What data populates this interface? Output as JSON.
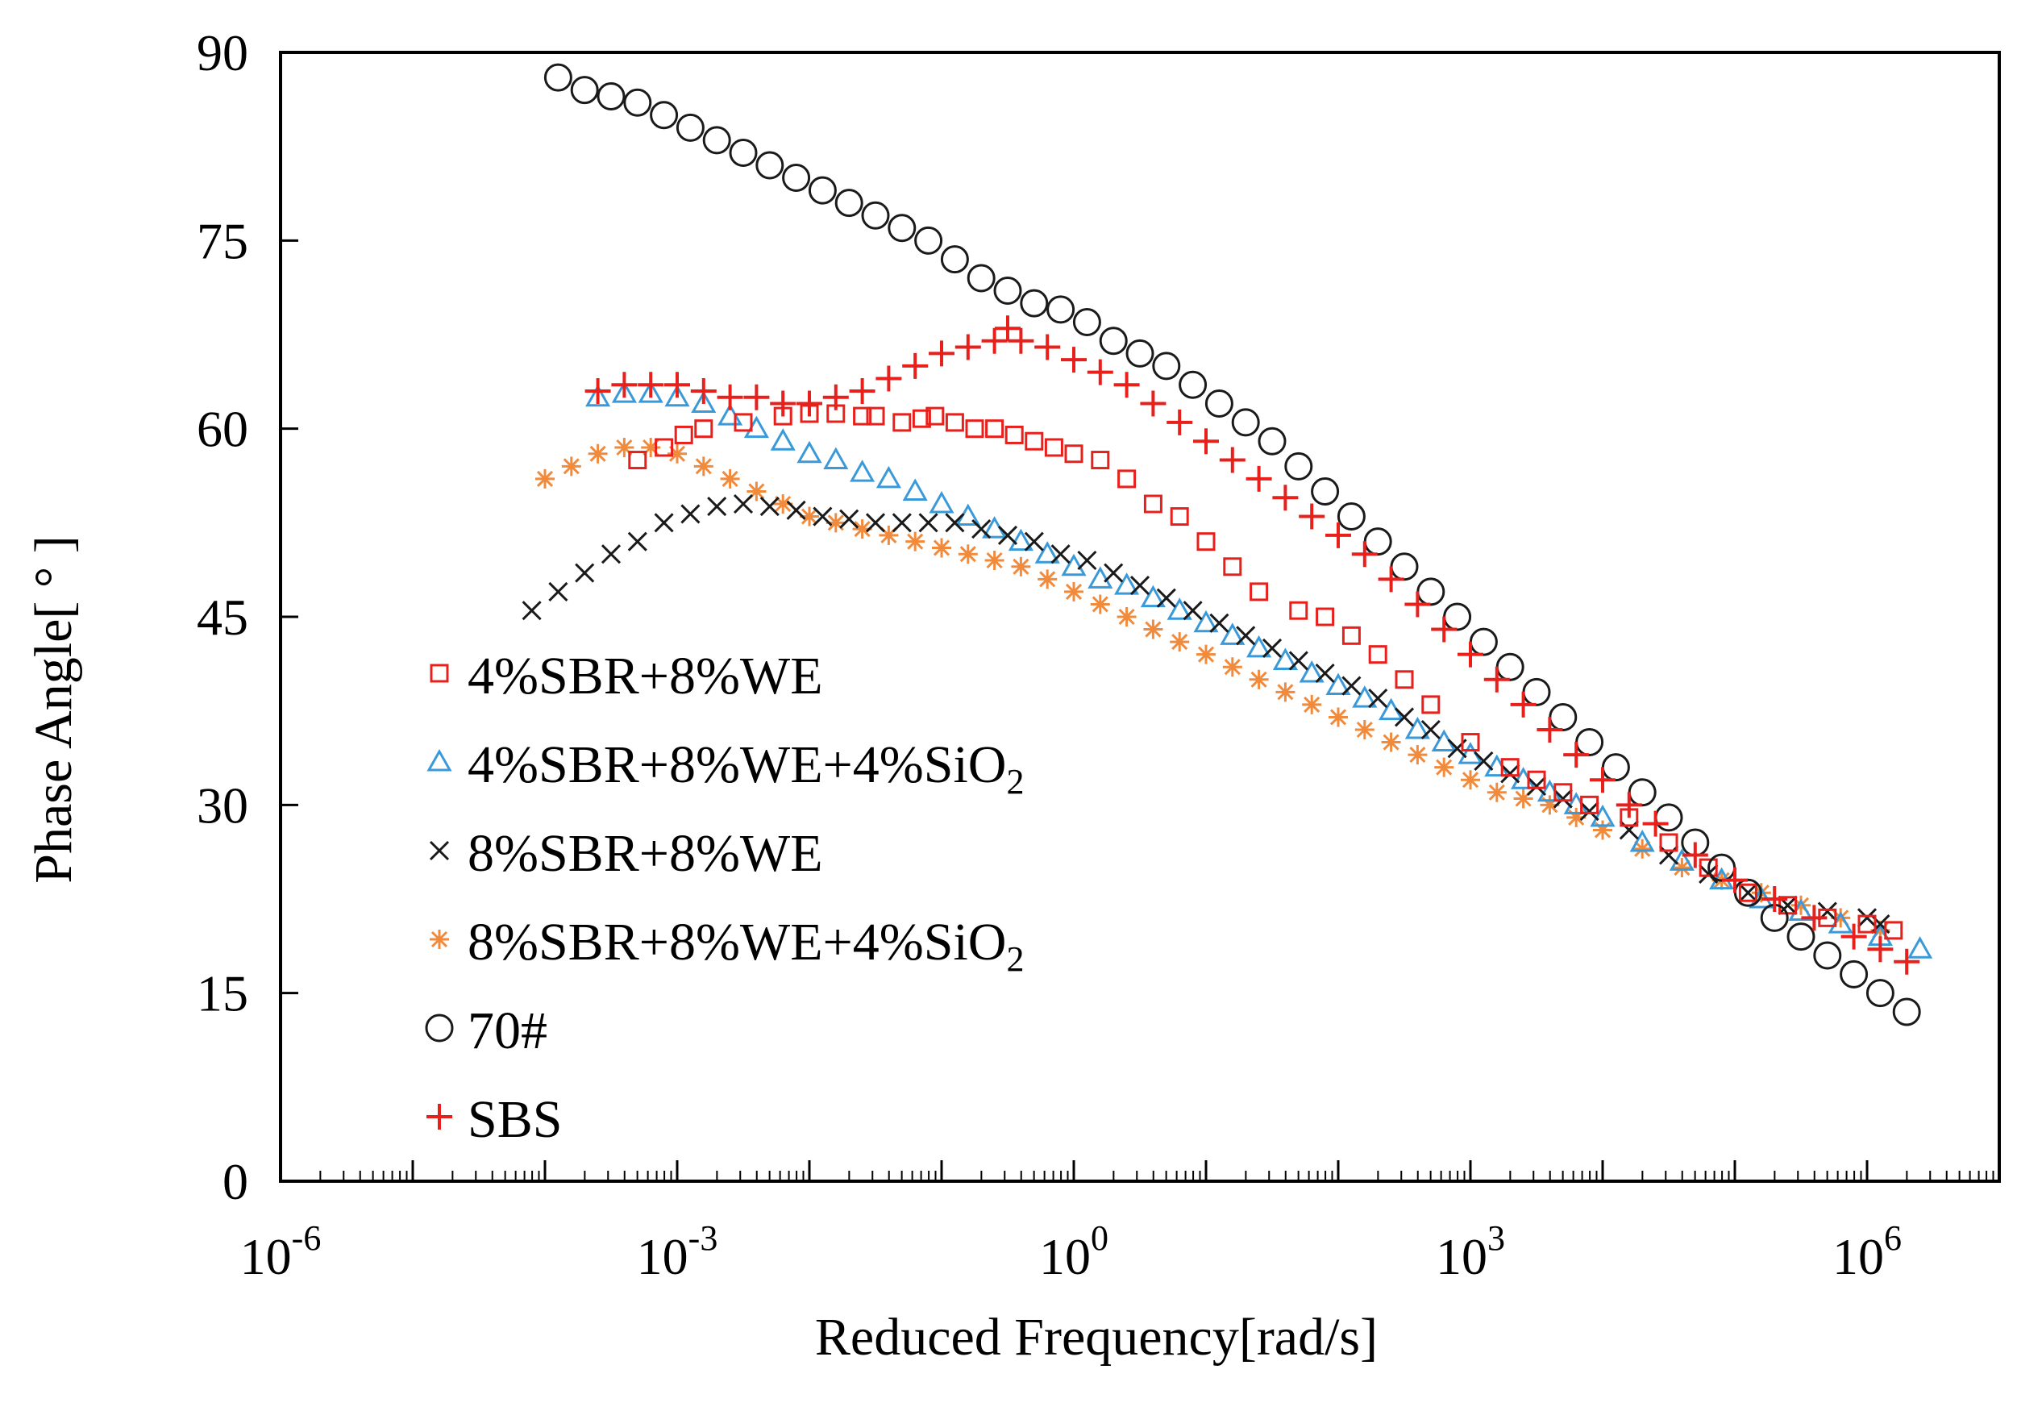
{
  "chart_data": {
    "type": "scatter",
    "title": "",
    "xlabel": "Reduced Frequency[rad/s]",
    "ylabel": "Phase Angle[ ° ]",
    "xscale": "log",
    "xlim_exponent": [
      -6,
      7
    ],
    "xtick_exponents": [
      -6,
      -3,
      0,
      3,
      6
    ],
    "xtick_labels": [
      {
        "base": "10",
        "exp": "-6"
      },
      {
        "base": "10",
        "exp": "-3"
      },
      {
        "base": "10",
        "exp": "0"
      },
      {
        "base": "10",
        "exp": "3"
      },
      {
        "base": "10",
        "exp": "6"
      }
    ],
    "ylim": [
      0,
      90
    ],
    "yticks": [
      0,
      15,
      30,
      45,
      60,
      75,
      90
    ],
    "ytick_labels": [
      "0",
      "15",
      "30",
      "45",
      "60",
      "75",
      "90"
    ],
    "grid": false,
    "legend_position": "left",
    "series": [
      {
        "name": "4%SBR+8%WE",
        "label_main": "4%SBR+8%WE",
        "label_sub": "",
        "marker": "square",
        "color": "#e8201c",
        "points": [
          [
            -3.3,
            57.5
          ],
          [
            -3.1,
            58.5
          ],
          [
            -2.95,
            59.5
          ],
          [
            -2.8,
            60
          ],
          [
            -2.5,
            60.5
          ],
          [
            -2.2,
            61
          ],
          [
            -2.0,
            61.2
          ],
          [
            -1.8,
            61.2
          ],
          [
            -1.6,
            61
          ],
          [
            -1.5,
            61
          ],
          [
            -1.3,
            60.5
          ],
          [
            -1.15,
            60.8
          ],
          [
            -1.05,
            61
          ],
          [
            -0.9,
            60.5
          ],
          [
            -0.75,
            60
          ],
          [
            -0.6,
            60
          ],
          [
            -0.45,
            59.5
          ],
          [
            -0.3,
            59
          ],
          [
            -0.15,
            58.5
          ],
          [
            0,
            58
          ],
          [
            0.2,
            57.5
          ],
          [
            0.4,
            56
          ],
          [
            0.6,
            54
          ],
          [
            0.8,
            53
          ],
          [
            1.0,
            51
          ],
          [
            1.2,
            49
          ],
          [
            1.4,
            47
          ],
          [
            1.7,
            45.5
          ],
          [
            1.9,
            45
          ],
          [
            2.1,
            43.5
          ],
          [
            2.3,
            42
          ],
          [
            2.5,
            40
          ],
          [
            2.7,
            38
          ],
          [
            3.0,
            35
          ],
          [
            3.3,
            33
          ],
          [
            3.5,
            32
          ],
          [
            3.7,
            31
          ],
          [
            3.9,
            30
          ],
          [
            4.2,
            29
          ],
          [
            4.5,
            27
          ],
          [
            4.8,
            25
          ],
          [
            5.1,
            23
          ],
          [
            5.4,
            22
          ],
          [
            5.7,
            21
          ],
          [
            6.0,
            20.5
          ],
          [
            6.2,
            20
          ]
        ]
      },
      {
        "name": "4%SBR+8%WE+4%SiO2",
        "label_main": "4%SBR+8%WE+4%SiO",
        "label_sub": "2",
        "marker": "triangle",
        "color": "#3a9ad9",
        "points": [
          [
            -3.6,
            62.5
          ],
          [
            -3.4,
            62.8
          ],
          [
            -3.2,
            62.8
          ],
          [
            -3.0,
            62.5
          ],
          [
            -2.8,
            62
          ],
          [
            -2.6,
            61
          ],
          [
            -2.4,
            60
          ],
          [
            -2.2,
            59
          ],
          [
            -2.0,
            58
          ],
          [
            -1.8,
            57.5
          ],
          [
            -1.6,
            56.5
          ],
          [
            -1.4,
            56
          ],
          [
            -1.2,
            55
          ],
          [
            -1.0,
            54
          ],
          [
            -0.8,
            53
          ],
          [
            -0.6,
            52
          ],
          [
            -0.4,
            51
          ],
          [
            -0.2,
            50
          ],
          [
            0,
            49
          ],
          [
            0.2,
            48
          ],
          [
            0.4,
            47.5
          ],
          [
            0.6,
            46.5
          ],
          [
            0.8,
            45.5
          ],
          [
            1.0,
            44.5
          ],
          [
            1.2,
            43.5
          ],
          [
            1.4,
            42.5
          ],
          [
            1.6,
            41.5
          ],
          [
            1.8,
            40.5
          ],
          [
            2.0,
            39.5
          ],
          [
            2.2,
            38.5
          ],
          [
            2.4,
            37.5
          ],
          [
            2.6,
            36
          ],
          [
            2.8,
            35
          ],
          [
            3.0,
            34
          ],
          [
            3.2,
            33
          ],
          [
            3.4,
            32
          ],
          [
            3.6,
            31
          ],
          [
            3.8,
            30
          ],
          [
            4.0,
            29
          ],
          [
            4.3,
            27
          ],
          [
            4.6,
            25.5
          ],
          [
            4.9,
            24
          ],
          [
            5.2,
            22.5
          ],
          [
            5.5,
            21.5
          ],
          [
            5.8,
            20.5
          ],
          [
            6.1,
            19.5
          ],
          [
            6.4,
            18.5
          ]
        ]
      },
      {
        "name": "8%SBR+8%WE",
        "label_main": "8%SBR+8%WE",
        "label_sub": "",
        "marker": "x",
        "color": "#1a1a1a",
        "points": [
          [
            -4.1,
            45.5
          ],
          [
            -3.9,
            47
          ],
          [
            -3.7,
            48.5
          ],
          [
            -3.5,
            50
          ],
          [
            -3.3,
            51
          ],
          [
            -3.1,
            52.5
          ],
          [
            -2.9,
            53.2
          ],
          [
            -2.7,
            53.8
          ],
          [
            -2.5,
            54
          ],
          [
            -2.3,
            53.8
          ],
          [
            -2.1,
            53.5
          ],
          [
            -1.9,
            53
          ],
          [
            -1.7,
            52.8
          ],
          [
            -1.5,
            52.5
          ],
          [
            -1.3,
            52.5
          ],
          [
            -1.1,
            52.5
          ],
          [
            -0.9,
            52.5
          ],
          [
            -0.7,
            52
          ],
          [
            -0.5,
            51.5
          ],
          [
            -0.3,
            51
          ],
          [
            -0.1,
            50
          ],
          [
            0.1,
            49.5
          ],
          [
            0.3,
            48.5
          ],
          [
            0.5,
            47.5
          ],
          [
            0.7,
            46.5
          ],
          [
            0.9,
            45.5
          ],
          [
            1.1,
            44.5
          ],
          [
            1.3,
            43.5
          ],
          [
            1.5,
            42.5
          ],
          [
            1.7,
            41.5
          ],
          [
            1.9,
            40.5
          ],
          [
            2.1,
            39.5
          ],
          [
            2.3,
            38.5
          ],
          [
            2.5,
            37
          ],
          [
            2.7,
            36
          ],
          [
            2.9,
            34.5
          ],
          [
            3.1,
            33.5
          ],
          [
            3.3,
            32.5
          ],
          [
            3.5,
            31.5
          ],
          [
            3.7,
            30.5
          ],
          [
            3.9,
            29.5
          ],
          [
            4.2,
            28
          ],
          [
            4.5,
            26
          ],
          [
            4.8,
            24.5
          ],
          [
            5.1,
            23
          ],
          [
            5.4,
            22
          ],
          [
            5.7,
            21.5
          ],
          [
            6.0,
            21
          ],
          [
            6.1,
            20.5
          ]
        ]
      },
      {
        "name": "8%SBR+8%WE+4%SiO2",
        "label_main": "8%SBR+8%WE+4%SiO",
        "label_sub": "2",
        "marker": "asterisk",
        "color": "#f28a3c",
        "points": [
          [
            -4.0,
            56
          ],
          [
            -3.8,
            57
          ],
          [
            -3.6,
            58
          ],
          [
            -3.4,
            58.5
          ],
          [
            -3.2,
            58.5
          ],
          [
            -3.0,
            58
          ],
          [
            -2.8,
            57
          ],
          [
            -2.6,
            56
          ],
          [
            -2.4,
            55
          ],
          [
            -2.2,
            54
          ],
          [
            -2.0,
            53
          ],
          [
            -1.8,
            52.5
          ],
          [
            -1.6,
            52
          ],
          [
            -1.4,
            51.5
          ],
          [
            -1.2,
            51
          ],
          [
            -1.0,
            50.5
          ],
          [
            -0.8,
            50
          ],
          [
            -0.6,
            49.5
          ],
          [
            -0.4,
            49
          ],
          [
            -0.2,
            48
          ],
          [
            0,
            47
          ],
          [
            0.2,
            46
          ],
          [
            0.4,
            45
          ],
          [
            0.6,
            44
          ],
          [
            0.8,
            43
          ],
          [
            1.0,
            42
          ],
          [
            1.2,
            41
          ],
          [
            1.4,
            40
          ],
          [
            1.6,
            39
          ],
          [
            1.8,
            38
          ],
          [
            2.0,
            37
          ],
          [
            2.2,
            36
          ],
          [
            2.4,
            35
          ],
          [
            2.6,
            34
          ],
          [
            2.8,
            33
          ],
          [
            3.0,
            32
          ],
          [
            3.2,
            31
          ],
          [
            3.4,
            30.5
          ],
          [
            3.6,
            30
          ],
          [
            3.8,
            29
          ],
          [
            4.0,
            28
          ],
          [
            4.3,
            26.5
          ],
          [
            4.6,
            25
          ],
          [
            4.9,
            24
          ],
          [
            5.2,
            23
          ],
          [
            5.5,
            22
          ],
          [
            5.8,
            21
          ],
          [
            6.1,
            20
          ]
        ]
      },
      {
        "name": "70#",
        "label_main": "70#",
        "label_sub": "",
        "marker": "circle",
        "color": "#1a1a1a",
        "points": [
          [
            -3.9,
            88
          ],
          [
            -3.7,
            87
          ],
          [
            -3.5,
            86.5
          ],
          [
            -3.3,
            86
          ],
          [
            -3.1,
            85
          ],
          [
            -2.9,
            84
          ],
          [
            -2.7,
            83
          ],
          [
            -2.5,
            82
          ],
          [
            -2.3,
            81
          ],
          [
            -2.1,
            80
          ],
          [
            -1.9,
            79
          ],
          [
            -1.7,
            78
          ],
          [
            -1.5,
            77
          ],
          [
            -1.3,
            76
          ],
          [
            -1.1,
            75
          ],
          [
            -0.9,
            73.5
          ],
          [
            -0.7,
            72
          ],
          [
            -0.5,
            71
          ],
          [
            -0.3,
            70
          ],
          [
            -0.1,
            69.5
          ],
          [
            0.1,
            68.5
          ],
          [
            0.3,
            67
          ],
          [
            0.5,
            66
          ],
          [
            0.7,
            65
          ],
          [
            0.9,
            63.5
          ],
          [
            1.1,
            62
          ],
          [
            1.3,
            60.5
          ],
          [
            1.5,
            59
          ],
          [
            1.7,
            57
          ],
          [
            1.9,
            55
          ],
          [
            2.1,
            53
          ],
          [
            2.3,
            51
          ],
          [
            2.5,
            49
          ],
          [
            2.7,
            47
          ],
          [
            2.9,
            45
          ],
          [
            3.1,
            43
          ],
          [
            3.3,
            41
          ],
          [
            3.5,
            39
          ],
          [
            3.7,
            37
          ],
          [
            3.9,
            35
          ],
          [
            4.1,
            33
          ],
          [
            4.3,
            31
          ],
          [
            4.5,
            29
          ],
          [
            4.7,
            27
          ],
          [
            4.9,
            25
          ],
          [
            5.1,
            23
          ],
          [
            5.3,
            21
          ],
          [
            5.5,
            19.5
          ],
          [
            5.7,
            18
          ],
          [
            5.9,
            16.5
          ],
          [
            6.1,
            15
          ],
          [
            6.3,
            13.5
          ]
        ]
      },
      {
        "name": "SBS",
        "label_main": "SBS",
        "label_sub": "",
        "marker": "plus",
        "color": "#e8201c",
        "points": [
          [
            -3.6,
            63
          ],
          [
            -3.4,
            63.5
          ],
          [
            -3.2,
            63.5
          ],
          [
            -3.0,
            63.5
          ],
          [
            -2.8,
            63
          ],
          [
            -2.6,
            62.5
          ],
          [
            -2.4,
            62.5
          ],
          [
            -2.2,
            62
          ],
          [
            -2.0,
            62
          ],
          [
            -1.8,
            62.5
          ],
          [
            -1.6,
            63
          ],
          [
            -1.4,
            64
          ],
          [
            -1.2,
            65
          ],
          [
            -1.0,
            66
          ],
          [
            -0.8,
            66.5
          ],
          [
            -0.6,
            67
          ],
          [
            -0.5,
            68
          ],
          [
            -0.4,
            67
          ],
          [
            -0.2,
            66.5
          ],
          [
            0,
            65.5
          ],
          [
            0.2,
            64.5
          ],
          [
            0.4,
            63.5
          ],
          [
            0.6,
            62
          ],
          [
            0.8,
            60.5
          ],
          [
            1.0,
            59
          ],
          [
            1.2,
            57.5
          ],
          [
            1.4,
            56
          ],
          [
            1.6,
            54.5
          ],
          [
            1.8,
            53
          ],
          [
            2.0,
            51.5
          ],
          [
            2.2,
            50
          ],
          [
            2.4,
            48
          ],
          [
            2.6,
            46
          ],
          [
            2.8,
            44
          ],
          [
            3.0,
            42
          ],
          [
            3.2,
            40
          ],
          [
            3.4,
            38
          ],
          [
            3.6,
            36
          ],
          [
            3.8,
            34
          ],
          [
            4.0,
            32
          ],
          [
            4.2,
            30
          ],
          [
            4.4,
            28.5
          ],
          [
            4.7,
            26
          ],
          [
            5.0,
            24
          ],
          [
            5.3,
            22.5
          ],
          [
            5.6,
            21
          ],
          [
            5.9,
            19.5
          ],
          [
            6.1,
            18.5
          ],
          [
            6.3,
            17.5
          ]
        ]
      }
    ]
  }
}
